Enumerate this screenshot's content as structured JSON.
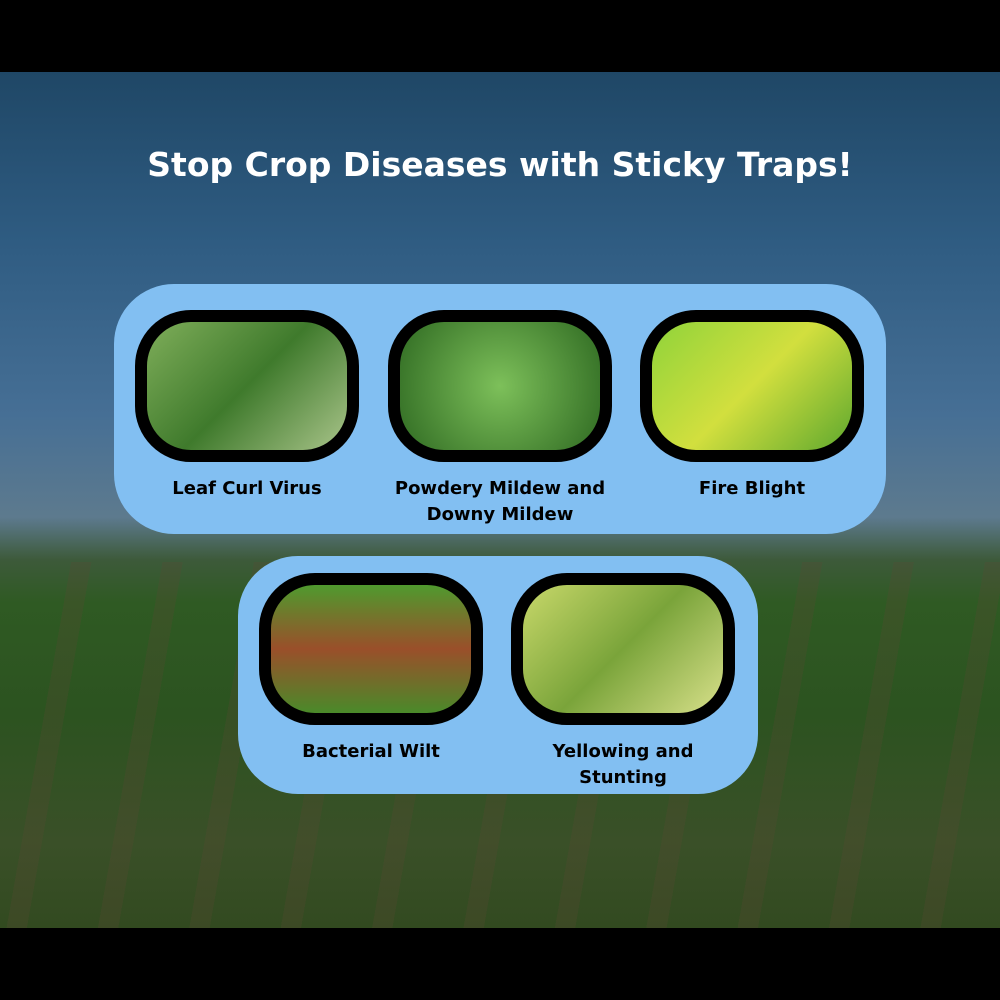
{
  "title": "Stop Crop Diseases with Sticky Traps!",
  "diseases": [
    {
      "label": "Leaf Curl Virus",
      "image": "linear-gradient(135deg,#7fae5a,#3f7a2c 50%,#a9c48a)"
    },
    {
      "label": "Powdery Mildew and Downy Mildew",
      "image": "radial-gradient(circle,#7dc05a,#2f6a22)"
    },
    {
      "label": "Fire Blight",
      "image": "linear-gradient(135deg,#8fd33a,#d2df3e 50%,#5ea82e)"
    },
    {
      "label": "Bacterial Wilt",
      "image": "linear-gradient(180deg,#4f9a2e,#9a4f2a 50%,#4a8a2a)"
    },
    {
      "label": "Yellowing and Stunting",
      "image": "linear-gradient(135deg,#c8d86a,#7aa43a 50%,#d8e08a)"
    }
  ]
}
